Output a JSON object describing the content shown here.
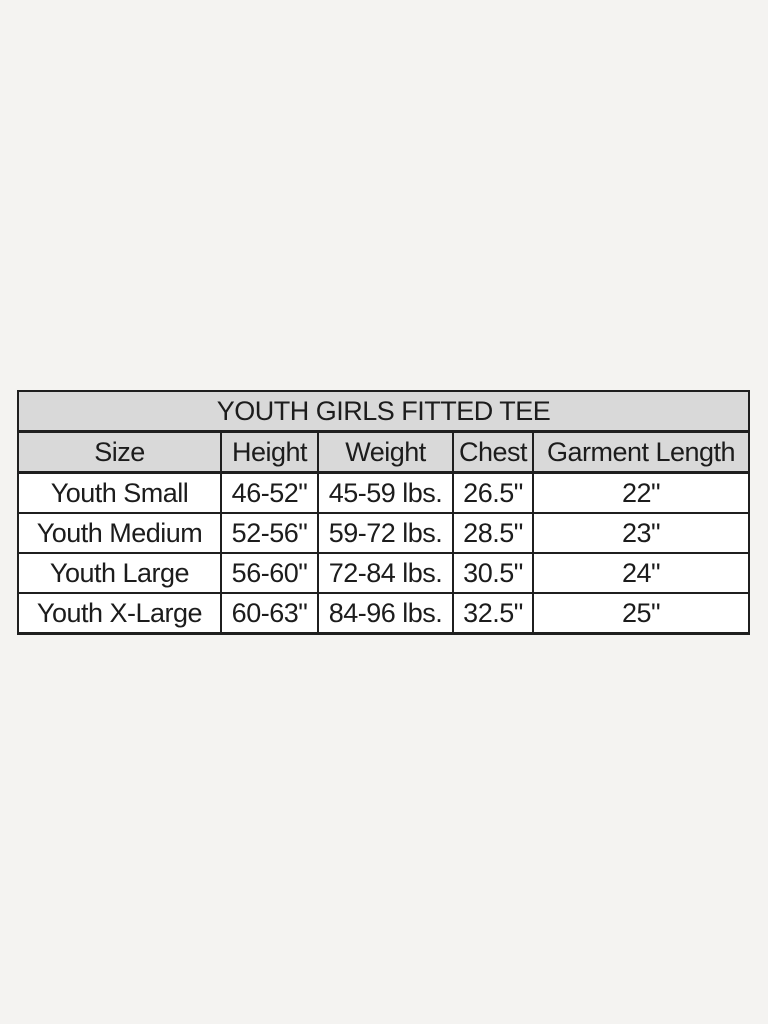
{
  "page": {
    "background_color": "#f4f3f1"
  },
  "size_chart": {
    "title": "YOUTH GIRLS FITTED TEE",
    "colors": {
      "header_background": "#d9d9d9",
      "row_background": "#ffffff",
      "border": "#1f1f1f",
      "text": "#1c1c1c"
    },
    "columns": {
      "size": "Size",
      "height": "Height",
      "weight": "Weight",
      "chest": "Chest",
      "garment_length": "Garment Length"
    },
    "rows": [
      {
        "size": "Youth Small",
        "height": "46-52\"",
        "weight": "45-59 lbs.",
        "chest": "26.5\"",
        "garment_length": "22\""
      },
      {
        "size": "Youth Medium",
        "height": "52-56\"",
        "weight": "59-72 lbs.",
        "chest": "28.5\"",
        "garment_length": "23\""
      },
      {
        "size": "Youth Large",
        "height": "56-60\"",
        "weight": "72-84 lbs.",
        "chest": "30.5\"",
        "garment_length": "24\""
      },
      {
        "size": "Youth X-Large",
        "height": "60-63\"",
        "weight": "84-96 lbs.",
        "chest": "32.5\"",
        "garment_length": "25\""
      }
    ]
  }
}
